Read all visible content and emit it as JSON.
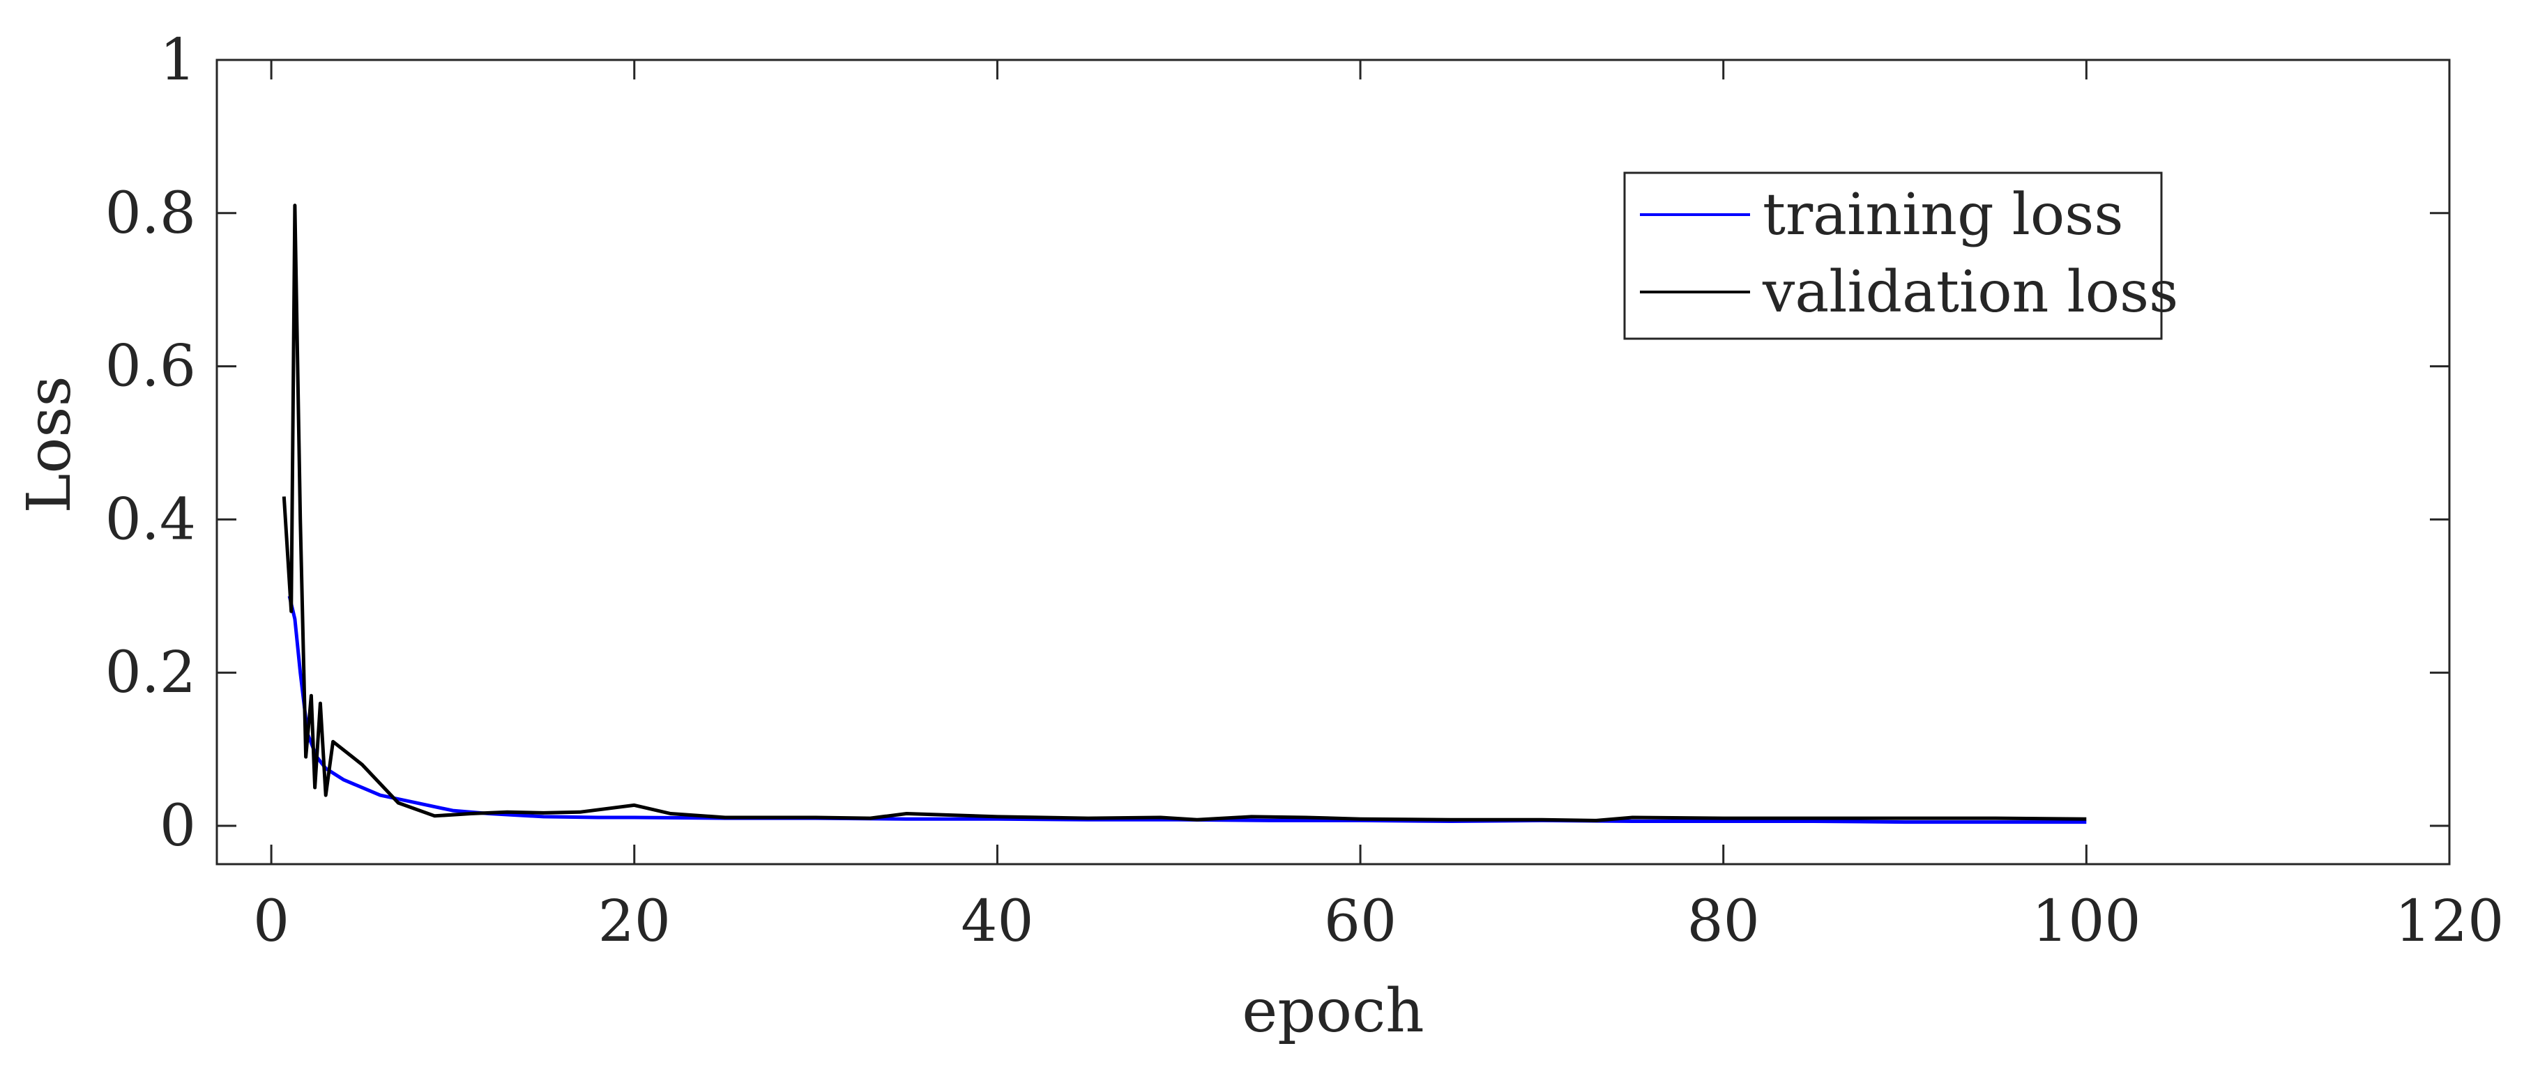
{
  "chart_data": {
    "type": "line",
    "xlabel": "epoch",
    "ylabel": "Loss",
    "xlim": [
      -3,
      120
    ],
    "ylim": [
      -0.05,
      1
    ],
    "xticks": [
      0,
      20,
      40,
      60,
      80,
      100,
      120
    ],
    "yticks": [
      0,
      0.2,
      0.4,
      0.6,
      0.8,
      1
    ],
    "xtick_labels": [
      "0",
      "20",
      "40",
      "60",
      "80",
      "100",
      "120"
    ],
    "ytick_labels": [
      "0",
      "0.2",
      "0.4",
      "0.6",
      "0.8",
      "1"
    ],
    "grid": false,
    "legend_position": "top-right",
    "series": [
      {
        "name": "training loss",
        "color": "#0000ff",
        "points": [
          [
            1,
            0.3
          ],
          [
            1.3,
            0.27
          ],
          [
            1.6,
            0.2
          ],
          [
            2,
            0.12
          ],
          [
            2.5,
            0.09
          ],
          [
            3,
            0.075
          ],
          [
            4,
            0.06
          ],
          [
            5,
            0.05
          ],
          [
            6,
            0.04
          ],
          [
            8,
            0.03
          ],
          [
            10,
            0.02
          ],
          [
            12,
            0.016
          ],
          [
            15,
            0.012
          ],
          [
            18,
            0.011
          ],
          [
            20,
            0.011
          ],
          [
            25,
            0.01
          ],
          [
            30,
            0.01
          ],
          [
            35,
            0.009
          ],
          [
            40,
            0.009
          ],
          [
            45,
            0.008
          ],
          [
            50,
            0.008
          ],
          [
            55,
            0.007
          ],
          [
            60,
            0.007
          ],
          [
            65,
            0.006
          ],
          [
            70,
            0.007
          ],
          [
            75,
            0.006
          ],
          [
            80,
            0.006
          ],
          [
            85,
            0.006
          ],
          [
            90,
            0.005
          ],
          [
            95,
            0.005
          ],
          [
            100,
            0.005
          ]
        ]
      },
      {
        "name": "validation loss",
        "color": "#000000",
        "points": [
          [
            0.7,
            0.43
          ],
          [
            1.1,
            0.28
          ],
          [
            1.3,
            0.81
          ],
          [
            1.6,
            0.4
          ],
          [
            1.9,
            0.09
          ],
          [
            2.2,
            0.17
          ],
          [
            2.4,
            0.05
          ],
          [
            2.7,
            0.16
          ],
          [
            3.0,
            0.04
          ],
          [
            3.4,
            0.11
          ],
          [
            5,
            0.08
          ],
          [
            7,
            0.03
          ],
          [
            9,
            0.013
          ],
          [
            11,
            0.016
          ],
          [
            13,
            0.018
          ],
          [
            15,
            0.017
          ],
          [
            17,
            0.018
          ],
          [
            20,
            0.027
          ],
          [
            22,
            0.016
          ],
          [
            25,
            0.011
          ],
          [
            30,
            0.011
          ],
          [
            33,
            0.01
          ],
          [
            35,
            0.016
          ],
          [
            40,
            0.012
          ],
          [
            45,
            0.01
          ],
          [
            49,
            0.011
          ],
          [
            51,
            0.008
          ],
          [
            54,
            0.012
          ],
          [
            57,
            0.011
          ],
          [
            60,
            0.009
          ],
          [
            65,
            0.008
          ],
          [
            70,
            0.008
          ],
          [
            73,
            0.007
          ],
          [
            75,
            0.011
          ],
          [
            80,
            0.01
          ],
          [
            85,
            0.01
          ],
          [
            90,
            0.01
          ],
          [
            95,
            0.01
          ],
          [
            100,
            0.009
          ]
        ]
      }
    ]
  }
}
